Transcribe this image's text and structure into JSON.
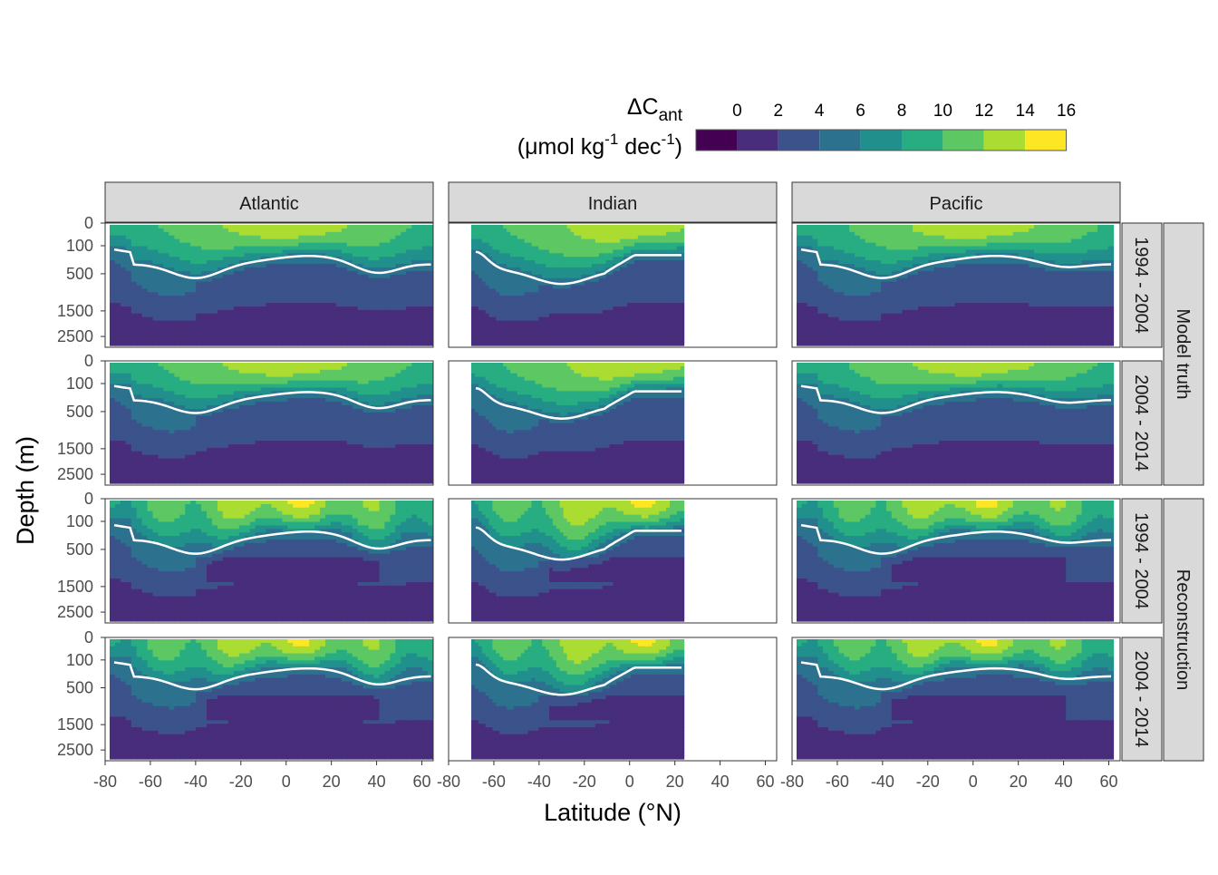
{
  "colors": {
    "bins": [
      "#440154",
      "#472D7B",
      "#3B528B",
      "#2C728E",
      "#21908C",
      "#27AD81",
      "#5DC863",
      "#AADC32",
      "#FDE725"
    ],
    "contour": "#ffffff",
    "strip_fill": "#d9d9d9",
    "panel_border": "#333333"
  },
  "legend": {
    "title_main": "ΔC",
    "title_sub": "ant",
    "unit_a": "(μmol kg",
    "unit_sup1": "-1",
    "unit_b": " dec",
    "unit_sup2": "-1",
    "unit_c": ")",
    "ticks": [
      "0",
      "2",
      "4",
      "6",
      "8",
      "10",
      "12",
      "14",
      "16"
    ]
  },
  "chart_data": {
    "type": "heatmap",
    "description_of_fill": "filled contour of anthropogenic carbon change per decade vs latitude and depth, faceted by basin (columns) and period × data source (rows); white line marks the 5 μmol kg-1 dec-1 isoline",
    "columns": [
      "Atlantic",
      "Indian",
      "Pacific"
    ],
    "rows": [
      {
        "period": "1994 - 2004",
        "group": "Model truth"
      },
      {
        "period": "2004 - 2014",
        "group": "Model truth"
      },
      {
        "period": "1994 - 2004",
        "group": "Reconstruction"
      },
      {
        "period": "2004 - 2014",
        "group": "Reconstruction"
      }
    ],
    "row_groups": [
      "Model truth",
      "Reconstruction"
    ],
    "xlabel": "Latitude (°N)",
    "ylabel": "Depth (m)",
    "xlim": [
      -80,
      65
    ],
    "ylim_depth": [
      0,
      3000
    ],
    "x_ticks": [
      "-80",
      "-60",
      "-40",
      "-20",
      "0",
      "20",
      "40",
      "60"
    ],
    "y_ticks": [
      "0",
      "100",
      "500",
      "1500",
      "2500"
    ],
    "y_tick_values": [
      0,
      100,
      500,
      1500,
      2500
    ],
    "y_scale": "reversed square-root",
    "basin_lat_range": {
      "Atlantic": [
        -78,
        65
      ],
      "Indian": [
        -70,
        24
      ],
      "Pacific": [
        -78,
        62
      ]
    },
    "isoline_value": 5
  }
}
